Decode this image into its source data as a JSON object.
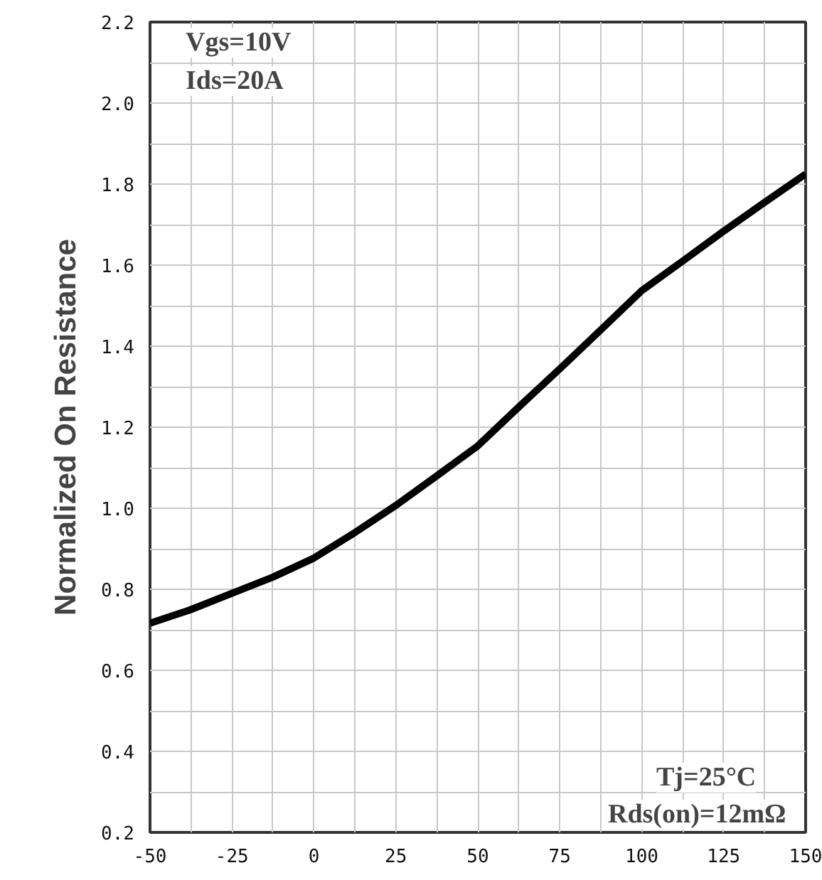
{
  "chart_data": {
    "type": "line",
    "ylabel": "Normalized On Resistance",
    "x": [
      -50,
      -37.5,
      -25,
      -12.5,
      0,
      12.5,
      25,
      37.5,
      50,
      62.5,
      75,
      87.5,
      100,
      112.5,
      125,
      137.5,
      150
    ],
    "series": [
      {
        "color": "#000000",
        "values": [
          0.716,
          0.75,
          0.79,
          0.83,
          0.877,
          0.94,
          1.007,
          1.08,
          1.154,
          1.25,
          1.344,
          1.44,
          1.537,
          1.61,
          1.684,
          1.755,
          1.825
        ]
      }
    ],
    "xlim": [
      -50,
      150
    ],
    "ylim": [
      0.2,
      2.2
    ],
    "xticks": [
      -50,
      {
        "value": -37.5,
        "label": null
      },
      -25,
      {
        "value": -12.5,
        "label": null
      },
      0,
      {
        "value": 12.5,
        "label": null
      },
      25,
      {
        "value": 37.5,
        "label": null
      },
      50,
      {
        "value": 62.5,
        "label": null
      },
      75,
      {
        "value": 87.5,
        "label": null
      },
      100,
      {
        "value": 112.5,
        "label": null
      },
      125,
      {
        "value": 137.5,
        "label": null
      },
      150
    ],
    "yticks": [
      0.2,
      {
        "value": 0.3,
        "label": null
      },
      0.4,
      {
        "value": 0.5,
        "label": null
      },
      0.6,
      {
        "value": 0.7,
        "label": null
      },
      0.8,
      {
        "value": 0.9,
        "label": null
      },
      {
        "value": 1,
        "label": "1.0"
      },
      {
        "value": 1.1,
        "label": null
      },
      1.2,
      {
        "value": 1.3,
        "label": null
      },
      1.4,
      {
        "value": 1.5,
        "label": null
      },
      1.6,
      {
        "value": 1.7,
        "label": null
      },
      1.8,
      {
        "value": 1.9,
        "label": null
      },
      {
        "value": 2,
        "label": "2.0"
      },
      {
        "value": 2.1,
        "label": null
      },
      2.2
    ],
    "grid": true,
    "marker": "none",
    "line_style": "solid",
    "annotations": [
      "Vgs=10V",
      "Ids=20A",
      "Tj=25°C",
      "Rds(on)=12mΩ"
    ]
  }
}
